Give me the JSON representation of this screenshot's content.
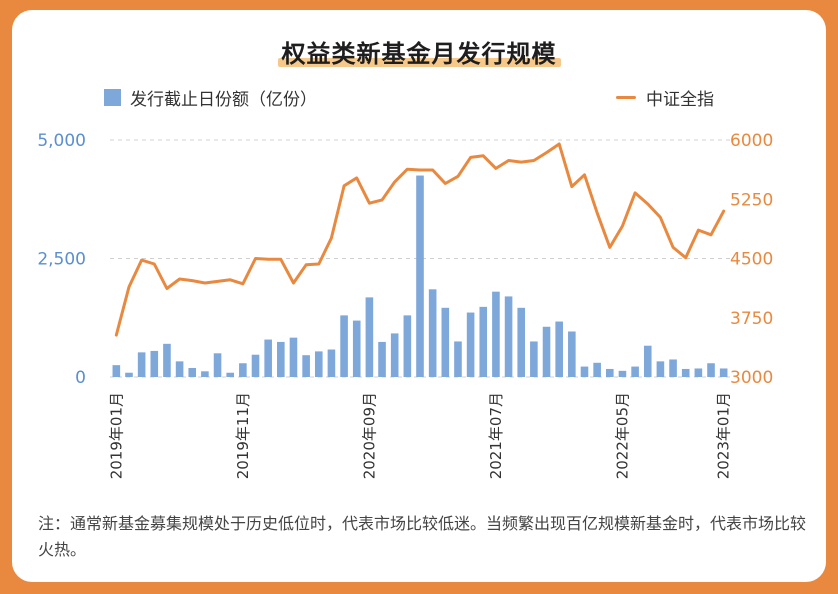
{
  "title": "权益类新基金月发行规模",
  "legend": {
    "bar_label": "发行截止日份额（亿份）",
    "line_label": "中证全指"
  },
  "note": "注：通常新基金募集规模处于历史低位时，代表市场比较低迷。当频繁出现百亿规模新基金时，代表市场比较火热。",
  "colors": {
    "bar": "#7ea7da",
    "line": "#e9893f",
    "left_axis": "#5b8fd0",
    "right_axis": "#e9893f",
    "background": "#e9893f"
  },
  "chart_data": {
    "type": "bar+line",
    "x": [
      "2019年01月",
      "2019年02月",
      "2019年03月",
      "2019年04月",
      "2019年05月",
      "2019年06月",
      "2019年07月",
      "2019年08月",
      "2019年09月",
      "2019年10月",
      "2019年11月",
      "2019年12月",
      "2020年01月",
      "2020年02月",
      "2020年03月",
      "2020年04月",
      "2020年05月",
      "2020年06月",
      "2020年07月",
      "2020年08月",
      "2020年09月",
      "2020年10月",
      "2020年11月",
      "2020年12月",
      "2021年01月",
      "2021年02月",
      "2021年03月",
      "2021年04月",
      "2021年05月",
      "2021年06月",
      "2021年07月",
      "2021年08月",
      "2021年09月",
      "2021年10月",
      "2021年11月",
      "2021年12月",
      "2022年01月",
      "2022年02月",
      "2022年03月",
      "2022年04月",
      "2022年05月",
      "2022年06月",
      "2022年07月",
      "2022年08月",
      "2022年09月",
      "2022年10月",
      "2022年11月",
      "2022年12月",
      "2023年01月"
    ],
    "x_tick_labels": [
      "2019年01月",
      "2019年11月",
      "2020年09月",
      "2021年07月",
      "2022年05月",
      "2023年01月"
    ],
    "series": [
      {
        "name": "发行截止日份额（亿份）",
        "type": "bar",
        "axis": "left",
        "values": [
          250,
          90,
          520,
          550,
          700,
          330,
          190,
          120,
          500,
          90,
          290,
          470,
          790,
          740,
          830,
          460,
          540,
          580,
          1300,
          1190,
          1680,
          740,
          920,
          1300,
          4250,
          1850,
          1460,
          750,
          1360,
          1480,
          1800,
          1700,
          1460,
          750,
          1060,
          1170,
          960,
          220,
          300,
          170,
          130,
          220,
          660,
          330,
          370,
          170,
          180,
          290,
          180
        ]
      },
      {
        "name": "中证全指",
        "type": "line",
        "axis": "right",
        "values": [
          3530,
          4140,
          4480,
          4430,
          4120,
          4240,
          4220,
          4190,
          4210,
          4230,
          4180,
          4500,
          4490,
          4490,
          4190,
          4420,
          4430,
          4760,
          5420,
          5520,
          5200,
          5240,
          5470,
          5630,
          5620,
          5620,
          5450,
          5540,
          5780,
          5800,
          5640,
          5740,
          5720,
          5740,
          5840,
          5950,
          5410,
          5560,
          5080,
          4640,
          4910,
          5330,
          5190,
          5020,
          4640,
          4510,
          4860,
          4800,
          5100
        ]
      }
    ],
    "y_left": {
      "ticks": [
        "5,000",
        "2,500",
        "0"
      ],
      "range": [
        0,
        5000
      ]
    },
    "y_right": {
      "ticks": [
        "6000",
        "5250",
        "4500",
        "3750",
        "3000"
      ],
      "range": [
        3000,
        6000
      ]
    },
    "grid": true,
    "legend_position": "top"
  }
}
